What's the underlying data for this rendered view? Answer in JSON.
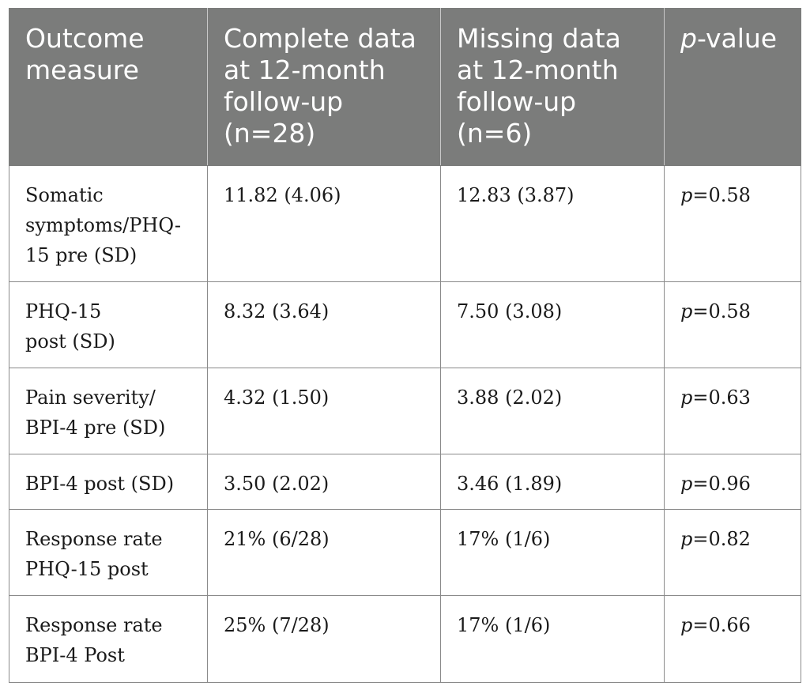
{
  "table": {
    "headers": [
      "Outcome measure",
      "Complete data at 12-month follow-up (n=28)",
      "Missing data at 12-month follow-up (n=6)",
      {
        "italic": "p",
        "rest": "-value"
      }
    ],
    "rows": [
      {
        "measure": "Somatic symptoms/PHQ-15 pre (SD)",
        "complete": "11.82 (4.06)",
        "missing": "12.83 (3.87)",
        "p_sym": "p",
        "p_rest": "=0.58"
      },
      {
        "measure": "PHQ-15 post (SD)",
        "complete": "8.32 (3.64)",
        "missing": "7.50 (3.08)",
        "p_sym": "p",
        "p_rest": "=0.58"
      },
      {
        "measure": "Pain severity/ BPI-4 pre (SD)",
        "complete": "4.32 (1.50)",
        "missing": "3.88 (2.02)",
        "p_sym": "p",
        "p_rest": "=0.63"
      },
      {
        "measure": "BPI-4 post (SD)",
        "complete": "3.50 (2.02)",
        "missing": "3.46 (1.89)",
        "p_sym": "p",
        "p_rest": "=0.96"
      },
      {
        "measure": "Response rate PHQ-15 post",
        "complete": "21% (6/28)",
        "missing": "17% (1/6)",
        "p_sym": "p",
        "p_rest": "=0.82"
      },
      {
        "measure": "Response rate BPI-4 Post",
        "complete": "25% (7/28)",
        "missing": "17% (1/6)",
        "p_sym": "p",
        "p_rest": "=0.66"
      }
    ]
  }
}
